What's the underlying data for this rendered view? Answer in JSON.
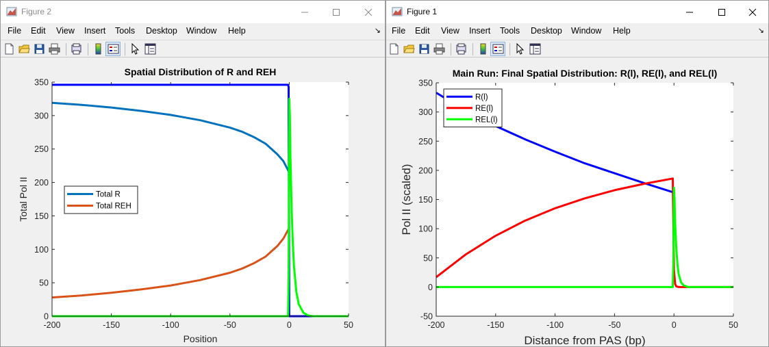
{
  "windows": [
    {
      "title": "Figure 2",
      "menu": [
        "File",
        "Edit",
        "View",
        "Insert",
        "Tools",
        "Desktop",
        "Window",
        "Help"
      ],
      "dock_glyph": "↘",
      "toolbar_icons": [
        "new-figure-icon",
        "open-file-icon",
        "save-icon",
        "print-icon",
        "print-preview-icon",
        "colorbar-icon",
        "legend-icon",
        "pointer-icon",
        "property-inspector-icon"
      ]
    },
    {
      "title": "Figure 1",
      "menu": [
        "File",
        "Edit",
        "View",
        "Insert",
        "Tools",
        "Desktop",
        "Window",
        "Help"
      ],
      "dock_glyph": "↘",
      "toolbar_icons": [
        "new-figure-icon",
        "open-file-icon",
        "save-icon",
        "print-icon",
        "print-preview-icon",
        "colorbar-icon",
        "legend-icon",
        "pointer-icon",
        "property-inspector-icon"
      ]
    }
  ],
  "chart_data": [
    {
      "type": "line",
      "title": "Spatial Distribution of R and REH",
      "xlabel": "Position",
      "ylabel": "Total Pol II",
      "xlim": [
        -200,
        50
      ],
      "ylim": [
        0,
        350
      ],
      "xticks": [
        "-200",
        "-150",
        "-100",
        "-50",
        "0",
        "50"
      ],
      "yticks": [
        "0",
        "50",
        "100",
        "150",
        "200",
        "250",
        "300",
        "350"
      ],
      "legend_position": "middle-left",
      "grid": false,
      "series": [
        {
          "name": "",
          "color": "#0000ff",
          "x": [
            -200,
            -1,
            -0.5,
            0,
            50
          ],
          "y": [
            346,
            346,
            343,
            0,
            0
          ]
        },
        {
          "name": "Total R",
          "color": "#0072bd",
          "x": [
            -200,
            -175,
            -150,
            -125,
            -100,
            -75,
            -50,
            -40,
            -30,
            -20,
            -10,
            -5,
            0
          ],
          "y": [
            319,
            316,
            312,
            307,
            301,
            293,
            282,
            276,
            268,
            258,
            242,
            232,
            215
          ]
        },
        {
          "name": "Total REH",
          "color": "#d95319",
          "x": [
            -200,
            -175,
            -150,
            -125,
            -100,
            -75,
            -50,
            -40,
            -30,
            -20,
            -10,
            -5,
            0
          ],
          "y": [
            28,
            31,
            35,
            40,
            46,
            54,
            65,
            71,
            79,
            89,
            105,
            116,
            132
          ]
        },
        {
          "name": "",
          "color": "#00ff00",
          "x": [
            -200,
            -1,
            -0.5,
            0,
            0.5,
            1,
            2,
            3,
            4,
            6,
            8,
            12,
            16,
            20,
            50
          ],
          "y": [
            0,
            0,
            60,
            325,
            300,
            240,
            160,
            110,
            75,
            36,
            18,
            5,
            1,
            0,
            0
          ]
        }
      ]
    },
    {
      "type": "line",
      "title": "Main Run: Final Spatial Distribution: R(l), RE(l), and REL(l)",
      "xlabel": "Distance from PAS (bp)",
      "ylabel": "Pol II (scaled)",
      "xlim": [
        -200,
        50
      ],
      "ylim": [
        -50,
        350
      ],
      "xticks": [
        "-200",
        "-150",
        "-100",
        "-50",
        "0",
        "50"
      ],
      "yticks": [
        "-50",
        "0",
        "50",
        "100",
        "150",
        "200",
        "250",
        "300",
        "350"
      ],
      "legend_position": "top-left",
      "grid": false,
      "series": [
        {
          "name": "R(l)",
          "color": "#0000ff",
          "x": [
            -200,
            -175,
            -150,
            -125,
            -100,
            -75,
            -50,
            -25,
            0
          ],
          "y": [
            333,
            302,
            276,
            253,
            232,
            212,
            195,
            178,
            162
          ]
        },
        {
          "name": "RE(l)",
          "color": "#ff0000",
          "x": [
            -200,
            -175,
            -150,
            -125,
            -100,
            -75,
            -50,
            -25,
            -1,
            0,
            1,
            2,
            4,
            50
          ],
          "y": [
            17,
            56,
            88,
            114,
            135,
            152,
            166,
            177,
            186,
            30,
            5,
            1,
            0,
            0
          ]
        },
        {
          "name": "REL(l)",
          "color": "#00ff00",
          "x": [
            -200,
            -1,
            -0.5,
            0,
            0.5,
            1,
            2,
            3,
            4,
            6,
            8,
            12,
            50
          ],
          "y": [
            0,
            0,
            40,
            170,
            150,
            110,
            65,
            38,
            22,
            8,
            3,
            0,
            0
          ]
        }
      ]
    }
  ]
}
